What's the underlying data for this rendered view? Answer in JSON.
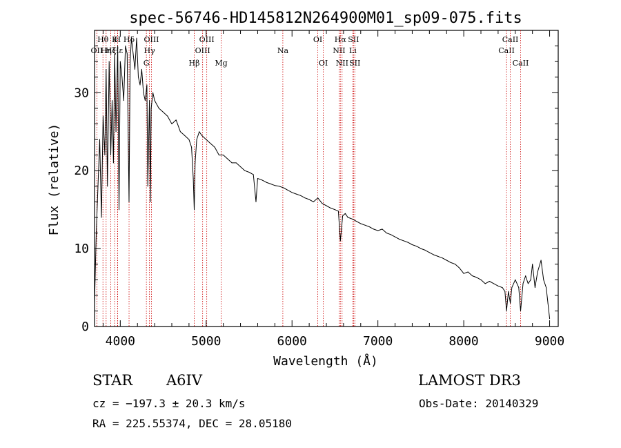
{
  "chart_data": {
    "type": "line",
    "title": "spec-56746-HD145812N264900M01_sp09-075.fits",
    "xlabel": "Wavelength (Å)",
    "ylabel": "Flux (relative)",
    "xlim": [
      3700,
      9100
    ],
    "ylim": [
      0,
      38
    ],
    "x_ticks": [
      4000,
      5000,
      6000,
      7000,
      8000,
      9000
    ],
    "y_ticks": [
      0,
      10,
      20,
      30
    ],
    "grid": false,
    "series": [
      {
        "name": "spectrum",
        "x": [
          3700,
          3720,
          3740,
          3760,
          3780,
          3800,
          3820,
          3835,
          3850,
          3870,
          3889,
          3905,
          3920,
          3935,
          3950,
          3970,
          3985,
          4000,
          4020,
          4040,
          4060,
          4080,
          4102,
          4115,
          4130,
          4150,
          4170,
          4190,
          4210,
          4230,
          4250,
          4270,
          4290,
          4310,
          4320,
          4340,
          4350,
          4360,
          4380,
          4400,
          4450,
          4500,
          4550,
          4600,
          4650,
          4700,
          4750,
          4800,
          4830,
          4850,
          4861,
          4872,
          4890,
          4920,
          4950,
          5000,
          5050,
          5100,
          5150,
          5200,
          5250,
          5300,
          5350,
          5400,
          5450,
          5500,
          5550,
          5580,
          5600,
          5650,
          5700,
          5750,
          5800,
          5850,
          5900,
          5950,
          6000,
          6050,
          6100,
          6150,
          6200,
          6250,
          6300,
          6350,
          6400,
          6450,
          6500,
          6540,
          6563,
          6590,
          6620,
          6650,
          6700,
          6750,
          6800,
          6850,
          6900,
          6950,
          7000,
          7050,
          7100,
          7150,
          7200,
          7250,
          7300,
          7350,
          7400,
          7450,
          7500,
          7550,
          7600,
          7650,
          7700,
          7750,
          7800,
          7850,
          7900,
          7950,
          8000,
          8050,
          8100,
          8150,
          8200,
          8250,
          8300,
          8350,
          8400,
          8450,
          8480,
          8498,
          8520,
          8542,
          8560,
          8600,
          8640,
          8662,
          8690,
          8720,
          8750,
          8780,
          8800,
          8830,
          8860,
          8900,
          8930,
          8960,
          8980,
          9000
        ],
        "y": [
          3,
          12,
          18,
          24,
          14,
          27,
          22,
          33,
          18,
          34,
          22,
          29,
          21,
          35,
          25,
          36,
          15,
          34,
          32,
          29,
          36,
          35,
          16,
          34,
          37,
          35,
          33,
          37,
          32,
          31,
          33,
          30,
          29,
          31,
          18,
          29,
          16,
          28,
          30,
          29,
          28,
          27.5,
          27,
          26,
          26.5,
          25,
          24.5,
          24,
          23,
          19,
          15,
          21,
          24,
          25,
          24.5,
          24,
          23.5,
          23,
          22,
          22,
          21.5,
          21,
          21,
          20.5,
          20,
          19.8,
          19.5,
          16,
          19,
          18.8,
          18.5,
          18.3,
          18.1,
          18,
          17.8,
          17.5,
          17.2,
          17,
          16.8,
          16.5,
          16.3,
          16,
          16.5,
          15.8,
          15.5,
          15.2,
          15,
          14.8,
          11,
          14.2,
          14.5,
          14,
          13.8,
          13.5,
          13.2,
          13,
          12.8,
          12.5,
          12.3,
          12.5,
          12,
          11.8,
          11.5,
          11.2,
          11,
          10.8,
          10.5,
          10.3,
          10,
          9.8,
          9.5,
          9.2,
          9,
          8.8,
          8.5,
          8.2,
          8,
          7.5,
          6.8,
          7,
          6.5,
          6.3,
          6,
          5.5,
          5.8,
          5.5,
          5.2,
          5,
          4.5,
          2,
          4.5,
          3,
          5,
          6,
          5,
          2,
          5.5,
          6.5,
          5.5,
          6,
          8,
          5,
          7,
          8.5,
          6,
          5,
          3,
          1
        ]
      }
    ],
    "line_markers": [
      {
        "label": "OII",
        "x": 3727,
        "row": 2
      },
      {
        "label": "Hθ",
        "x": 3798,
        "row": 1
      },
      {
        "label": "Hη",
        "x": 3835,
        "row": 2
      },
      {
        "label": "Hζ",
        "x": 3889,
        "row": 2
      },
      {
        "label": "K",
        "x": 3934,
        "row": 1
      },
      {
        "label": "H",
        "x": 3968,
        "row": 1
      },
      {
        "label": "Hε",
        "x": 3970,
        "row": 2
      },
      {
        "label": "Hδ",
        "x": 4102,
        "row": 1
      },
      {
        "label": "OIII",
        "x": 4363,
        "row": 1
      },
      {
        "label": "Hγ",
        "x": 4340,
        "row": 2
      },
      {
        "label": "G",
        "x": 4304,
        "row": 3
      },
      {
        "label": "Hβ",
        "x": 4861,
        "row": 3
      },
      {
        "label": "OIII",
        "x": 4959,
        "row": 2
      },
      {
        "label": "OIII",
        "x": 5007,
        "row": 1
      },
      {
        "label": "Mg",
        "x": 5175,
        "row": 3
      },
      {
        "label": "Na",
        "x": 5893,
        "row": 2
      },
      {
        "label": "OI",
        "x": 6300,
        "row": 1
      },
      {
        "label": "OI",
        "x": 6364,
        "row": 3
      },
      {
        "label": "NII",
        "x": 6548,
        "row": 2
      },
      {
        "label": "Hα",
        "x": 6563,
        "row": 1
      },
      {
        "label": "NII",
        "x": 6583,
        "row": 3
      },
      {
        "label": "SII",
        "x": 6716,
        "row": 1
      },
      {
        "label": "Li",
        "x": 6708,
        "row": 2
      },
      {
        "label": "SII",
        "x": 6731,
        "row": 3
      },
      {
        "label": "CaII",
        "x": 8498,
        "row": 2
      },
      {
        "label": "CaII",
        "x": 8542,
        "row": 1
      },
      {
        "label": "CaII",
        "x": 8662,
        "row": 3
      }
    ],
    "colors": {
      "spectrum": "#000000",
      "marker": "#cc0000",
      "axes": "#000000"
    }
  },
  "footer": {
    "object_class": "STAR",
    "subclass": "A6IV",
    "redshift": "cz = −197.3 ± 20.3 km/s",
    "coordinates": "RA = 225.55374, DEC =  28.05180",
    "survey": "LAMOST DR3",
    "obs_date": "Obs-Date: 20140329"
  }
}
